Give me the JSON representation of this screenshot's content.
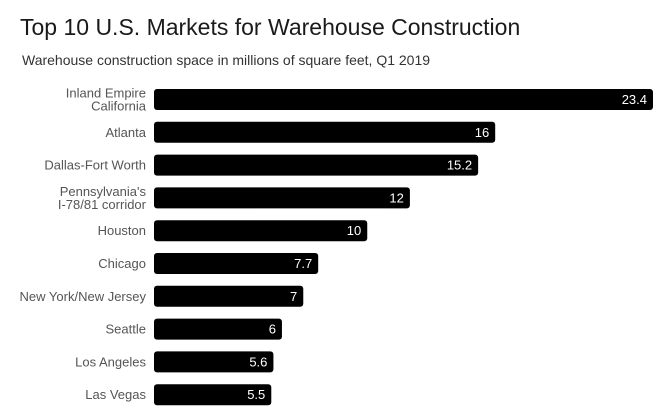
{
  "chart_data": {
    "type": "bar",
    "orientation": "horizontal",
    "title": "Top 10 U.S. Markets for Warehouse Construction",
    "subtitle": "Warehouse construction space in millions of square feet, Q1 2019",
    "categories": [
      [
        "Inland Empire",
        "California"
      ],
      [
        "Atlanta"
      ],
      [
        "Dallas-Fort Worth"
      ],
      [
        "Pennsylvania's",
        "I-78/81 corridor"
      ],
      [
        "Houston"
      ],
      [
        "Chicago"
      ],
      [
        "New York/New Jersey"
      ],
      [
        "Seattle"
      ],
      [
        "Los Angeles"
      ],
      [
        "Las Vegas"
      ]
    ],
    "values": [
      23.4,
      16,
      15.2,
      12,
      10,
      7.7,
      7,
      6,
      5.6,
      5.5
    ],
    "value_labels": [
      "23.4",
      "16",
      "15.2",
      "12",
      "10",
      "7.7",
      "7",
      "6",
      "5.6",
      "5.5"
    ],
    "xlim": [
      0,
      23.4
    ],
    "grid": false,
    "bar_color": "#000000",
    "label_color": "#ffffff"
  }
}
